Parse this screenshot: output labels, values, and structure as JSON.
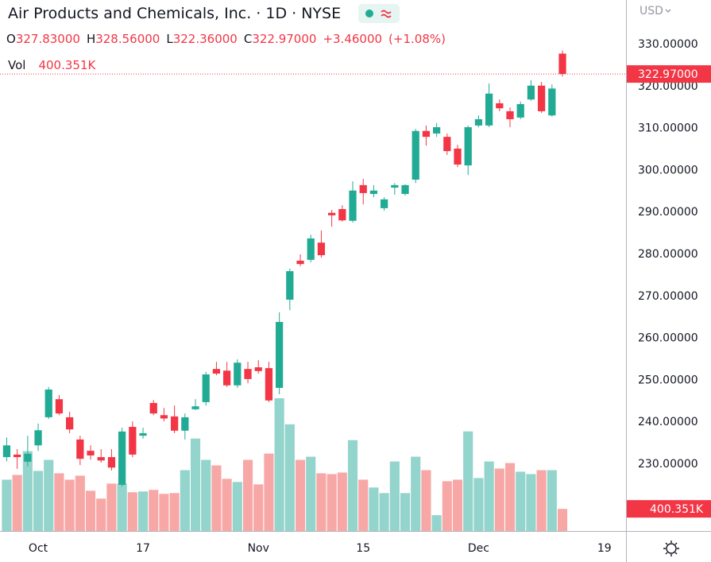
{
  "chart_data": {
    "type": "candlestick",
    "title": "Air Products and Chemicals, Inc. · 1D · NYSE",
    "ohlc_keys": [
      "O",
      "H",
      "L",
      "C"
    ],
    "last_labels": {
      "open": "327.83000",
      "high": "328.56000",
      "low": "322.36000",
      "close": "322.97000",
      "change": "+3.46000",
      "change_pct": "(+1.08%)"
    },
    "volume_title": "Vol",
    "volume_label": "400.351K",
    "currency": "USD",
    "open": [
      231.7,
      232.3,
      230.6,
      234.5,
      241.2,
      245.5,
      241.2,
      235.9,
      233.2,
      231.7,
      231.7,
      225.1,
      238.9,
      236.8,
      244.6,
      241.7,
      241.4,
      238.0,
      243.1,
      244.8,
      252.7,
      252.3,
      248.8,
      252.7,
      253.1,
      252.9,
      248.2,
      269.2,
      278.5,
      278.7,
      282.8,
      289.9,
      290.8,
      288.0,
      296.5,
      294.4,
      291.0,
      295.9,
      294.4,
      297.8,
      309.4,
      308.8,
      308.0,
      305.2,
      301.2,
      310.7,
      310.7,
      316.0,
      314.1,
      312.6,
      316.9,
      320.2,
      313.1,
      327.83
    ],
    "high": [
      236.4,
      233.6,
      236.8,
      239.7,
      248.4,
      246.5,
      242.5,
      236.8,
      234.5,
      233.6,
      233.6,
      238.7,
      240.2,
      238.7,
      245.3,
      243.4,
      244.0,
      242.1,
      245.5,
      252.0,
      254.4,
      254.4,
      255.0,
      254.4,
      254.8,
      254.4,
      266.2,
      276.6,
      280.0,
      284.7,
      285.7,
      290.6,
      291.7,
      297.4,
      298.0,
      296.5,
      293.6,
      297.0,
      296.7,
      309.9,
      310.7,
      311.3,
      308.8,
      306.1,
      310.7,
      313.1,
      320.7,
      316.9,
      315.0,
      316.4,
      321.5,
      321.1,
      320.5,
      328.56
    ],
    "low": [
      230.7,
      228.9,
      229.5,
      233.2,
      240.8,
      241.7,
      237.4,
      229.8,
      231.1,
      230.4,
      228.5,
      224.7,
      231.7,
      236.1,
      241.7,
      240.2,
      237.4,
      235.9,
      242.9,
      244.0,
      251.2,
      248.4,
      248.2,
      249.3,
      251.6,
      244.8,
      246.7,
      266.7,
      277.2,
      278.1,
      279.2,
      286.6,
      287.8,
      287.6,
      291.9,
      293.6,
      290.4,
      294.2,
      294.0,
      297.0,
      305.9,
      308.0,
      303.7,
      300.8,
      298.9,
      310.3,
      310.3,
      314.1,
      310.3,
      312.2,
      316.6,
      313.7,
      312.8,
      322.36
    ],
    "close": [
      234.5,
      231.7,
      232.5,
      238.1,
      247.8,
      242.1,
      238.3,
      231.3,
      232.1,
      230.9,
      229.2,
      237.8,
      232.3,
      237.4,
      242.1,
      240.9,
      238.0,
      241.2,
      243.8,
      251.4,
      251.6,
      248.8,
      254.2,
      250.3,
      252.2,
      245.2,
      263.9,
      276.0,
      277.7,
      283.8,
      279.8,
      289.3,
      288.1,
      295.2,
      294.6,
      295.2,
      293.1,
      296.5,
      296.5,
      309.4,
      308.0,
      310.3,
      304.6,
      301.4,
      310.3,
      312.2,
      318.3,
      314.8,
      312.2,
      315.8,
      320.2,
      314.1,
      319.51,
      322.97
    ],
    "volume": [
      929000,
      1015000,
      1444000,
      1087000,
      1287000,
      1044000,
      929000,
      1001000,
      729000,
      586000,
      858000,
      858000,
      701000,
      715000,
      744000,
      672000,
      686000,
      1101000,
      1673000,
      1287000,
      1187000,
      944000,
      887000,
      1287000,
      844000,
      1401000,
      2402000,
      1930000,
      1287000,
      1344000,
      1044000,
      1030000,
      1058000,
      1644000,
      929000,
      787000,
      686000,
      1258000,
      686000,
      1344000,
      1101000,
      286000,
      901000,
      929000,
      1802000,
      958000,
      1258000,
      1130000,
      1230000,
      1073000,
      1030000,
      1101000,
      1101000,
      400351
    ],
    "up_color": "#22ab94",
    "down_color": "#f23645",
    "volume_up_color": "#93d4cc",
    "volume_down_color": "#f7a8a6",
    "xlim": [
      -0.64,
      59.06
    ],
    "xticks": [
      {
        "value": 3,
        "label": "Oct"
      },
      {
        "value": 13,
        "label": "17"
      },
      {
        "value": 24,
        "label": "Nov"
      },
      {
        "value": 34,
        "label": "15"
      },
      {
        "value": 45,
        "label": "Dec"
      },
      {
        "value": 57,
        "label": "19"
      }
    ],
    "ylim": [
      214.1,
      340.6
    ],
    "yticks": [
      {
        "value": 230,
        "label": "230.00000"
      },
      {
        "value": 240,
        "label": "240.00000"
      },
      {
        "value": 250,
        "label": "250.00000"
      },
      {
        "value": 260,
        "label": "260.00000"
      },
      {
        "value": 270,
        "label": "270.00000"
      },
      {
        "value": 280,
        "label": "280.00000"
      },
      {
        "value": 290,
        "label": "290.00000"
      },
      {
        "value": 300,
        "label": "300.00000"
      },
      {
        "value": 310,
        "label": "310.00000"
      },
      {
        "value": 320,
        "label": "320.00000"
      },
      {
        "value": 330,
        "label": "330.00000"
      }
    ],
    "grid": false
  }
}
